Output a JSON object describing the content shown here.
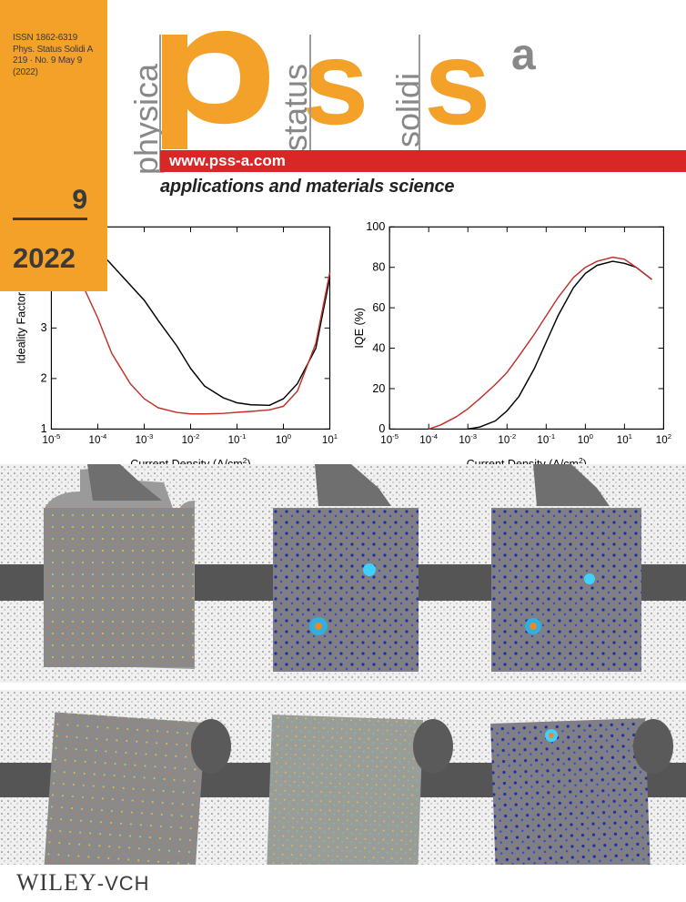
{
  "journal": {
    "issn_lines": [
      "ISSN 1862-6319",
      "Phys. Status Solidi A",
      "219 · No. 9 May 9",
      "(2022)"
    ],
    "issue_number": "9",
    "year": "2022",
    "title_letters": [
      "p",
      "s",
      "s",
      "a"
    ],
    "vertical_words": [
      "physica",
      "status",
      "solidi"
    ],
    "url": "www.pss-a.com",
    "subtitle": "applications and materials science",
    "publisher_wiley": "WILEY",
    "publisher_vch": "-VCH",
    "colors": {
      "orange": "#f4a12a",
      "red": "#d92727",
      "gray_text": "#888888"
    }
  },
  "chart_data": [
    {
      "type": "line",
      "xlabel": "Current Density (A/cm²)",
      "ylabel": "Ideality Factor",
      "xscale": "log",
      "xlim": [
        1e-05,
        10
      ],
      "ylim": [
        1,
        5
      ],
      "x_tick_labels": [
        "10-5",
        "10-4",
        "10-3",
        "10-2",
        "10-1",
        "100",
        "101"
      ],
      "y_tick_labels": [
        "1",
        "2",
        "3",
        "4"
      ],
      "series": [
        {
          "color": "#000000",
          "x": [
            8e-05,
            0.0001,
            0.0002,
            0.0005,
            0.001,
            0.002,
            0.005,
            0.01,
            0.02,
            0.05,
            0.1,
            0.2,
            0.5,
            1,
            2,
            5,
            10
          ],
          "y": [
            4.7,
            4.55,
            4.25,
            3.85,
            3.55,
            3.15,
            2.65,
            2.2,
            1.85,
            1.62,
            1.52,
            1.48,
            1.47,
            1.6,
            1.9,
            2.6,
            4.0
          ]
        },
        {
          "color": "#c0302a",
          "x": [
            3e-05,
            5e-05,
            0.0001,
            0.0002,
            0.0005,
            0.001,
            0.002,
            0.005,
            0.01,
            0.02,
            0.05,
            0.1,
            0.2,
            0.5,
            1,
            2,
            5,
            10
          ],
          "y": [
            4.5,
            3.8,
            3.2,
            2.5,
            1.9,
            1.6,
            1.42,
            1.33,
            1.3,
            1.3,
            1.31,
            1.33,
            1.35,
            1.38,
            1.45,
            1.75,
            2.7,
            4.1
          ]
        }
      ]
    },
    {
      "type": "line",
      "xlabel": "Current Density (A/cm²)",
      "ylabel": "IQE (%)",
      "xscale": "log",
      "xlim": [
        1e-05,
        100
      ],
      "ylim": [
        0,
        100
      ],
      "x_tick_labels": [
        "10-5",
        "10-4",
        "10-3",
        "10-2",
        "10-1",
        "100",
        "101",
        "102"
      ],
      "y_tick_labels": [
        "0",
        "20",
        "40",
        "60",
        "80",
        "100"
      ],
      "series": [
        {
          "color": "#000000",
          "x": [
            0.001,
            0.002,
            0.005,
            0.01,
            0.02,
            0.05,
            0.1,
            0.2,
            0.5,
            1,
            2,
            5,
            10,
            20,
            50
          ],
          "y": [
            0,
            1,
            4,
            9,
            16,
            30,
            43,
            56,
            70,
            77,
            81,
            83,
            82,
            80,
            74
          ]
        },
        {
          "color": "#c0302a",
          "x": [
            0.0001,
            0.0002,
            0.0005,
            0.001,
            0.002,
            0.005,
            0.01,
            0.02,
            0.05,
            0.1,
            0.2,
            0.5,
            1,
            2,
            5,
            10,
            20,
            50
          ],
          "y": [
            0,
            2,
            6,
            10,
            15,
            22,
            28,
            36,
            47,
            56,
            65,
            75,
            80,
            83,
            85,
            84,
            80,
            74
          ]
        }
      ]
    }
  ]
}
